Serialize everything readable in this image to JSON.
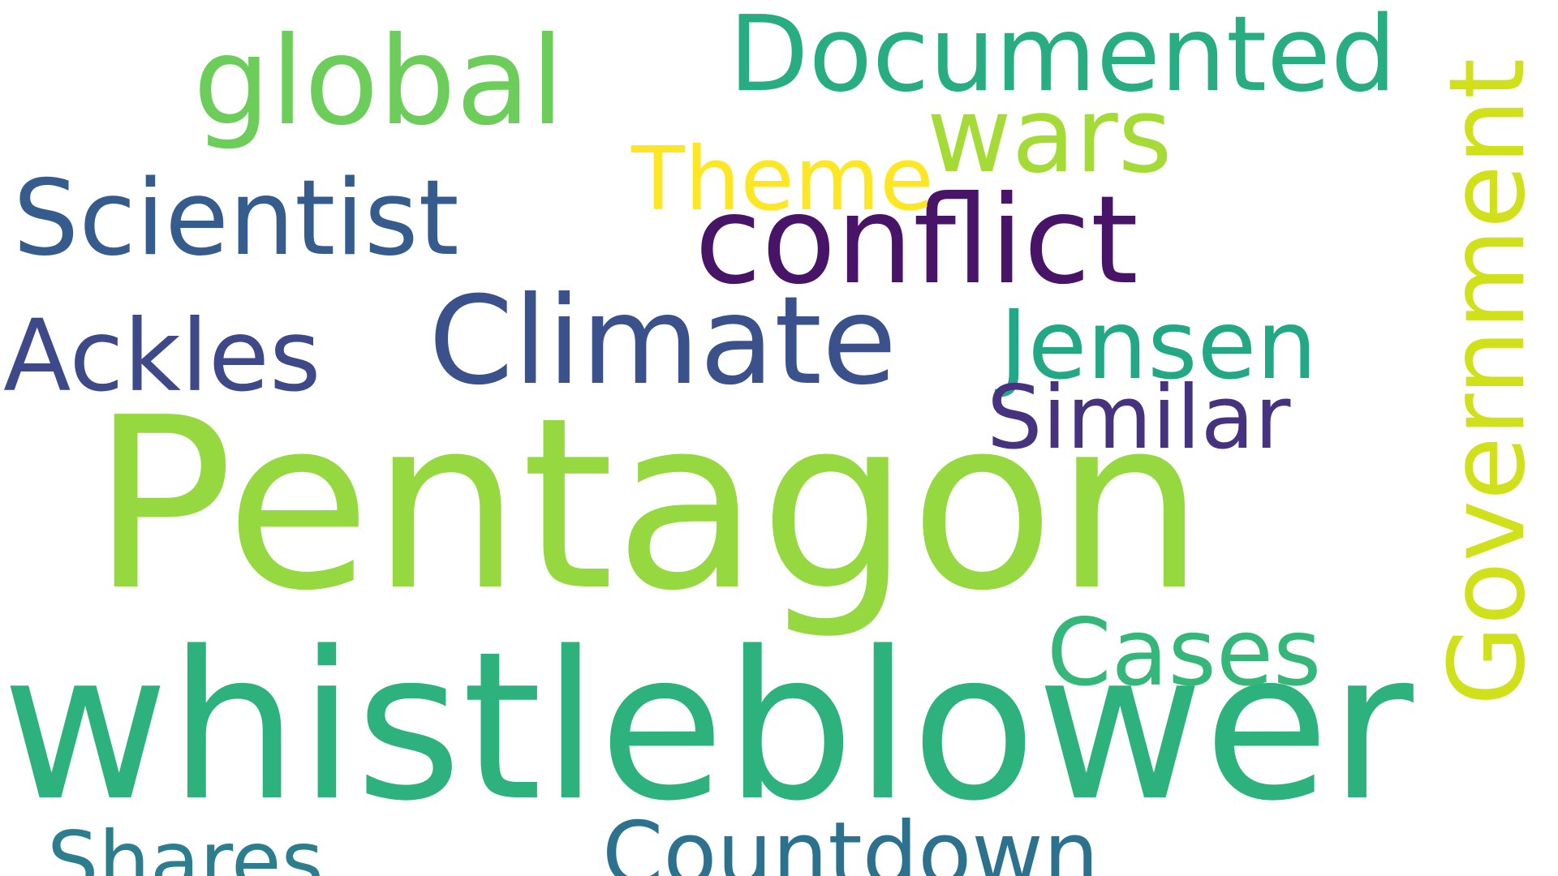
{
  "words": {
    "pentagon": {
      "text": "Pentagon",
      "color": "#95d840"
    },
    "whistleblower": {
      "text": "whistleblower",
      "color": "#2db27d"
    },
    "conflict": {
      "text": "conflict",
      "color": "#481467"
    },
    "climate": {
      "text": "Climate",
      "color": "#3b518b"
    },
    "global": {
      "text": "global",
      "color": "#6ccd5a"
    },
    "documented": {
      "text": "Documented",
      "color": "#27ad81"
    },
    "scientist": {
      "text": "Scientist",
      "color": "#365c8d"
    },
    "ackles": {
      "text": "Ackles",
      "color": "#3e4989"
    },
    "jensen": {
      "text": "Jensen",
      "color": "#22a884"
    },
    "wars": {
      "text": "wars",
      "color": "#a5db36"
    },
    "similar": {
      "text": "Similar",
      "color": "#46327e"
    },
    "cases": {
      "text": "Cases",
      "color": "#35b779"
    },
    "theme": {
      "text": "Theme",
      "color": "#fde725"
    },
    "countdown": {
      "text": "Countdown",
      "color": "#2c728e"
    },
    "shares": {
      "text": "Shares",
      "color": "#2c7e8e"
    },
    "government": {
      "text": "Government",
      "color": "#d0e11c"
    }
  }
}
